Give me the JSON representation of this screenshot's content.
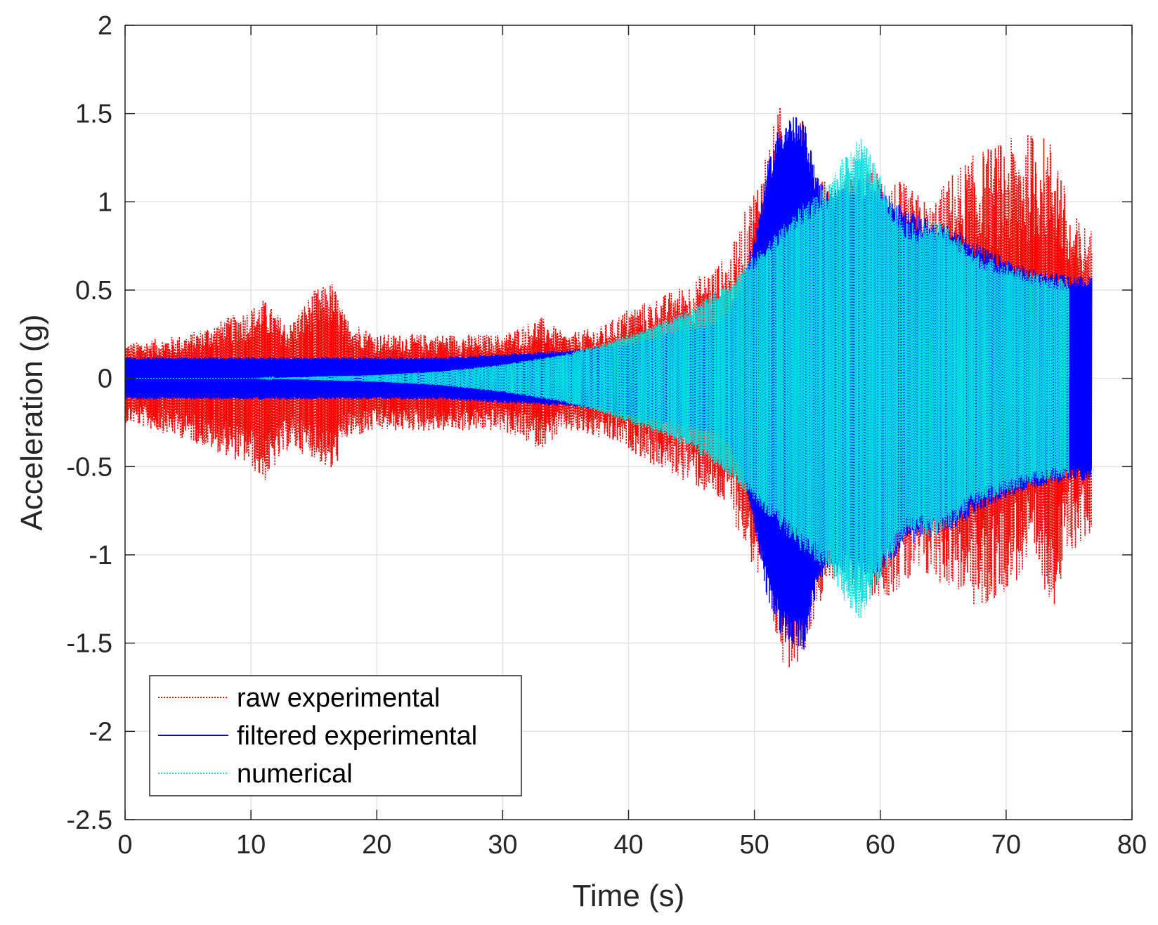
{
  "chart_data": {
    "type": "line",
    "title": "",
    "xlabel": "Time (s)",
    "ylabel": "Acceleration (g)",
    "xlim": [
      0,
      80
    ],
    "ylim": [
      -2.5,
      2
    ],
    "xticks": [
      0,
      10,
      20,
      30,
      40,
      50,
      60,
      70,
      80
    ],
    "yticks": [
      2,
      1.5,
      1,
      0.5,
      0,
      -0.5,
      -1,
      -1.5,
      -2,
      -2.5
    ],
    "grid": true,
    "legend_position": "bottom-left",
    "series": [
      {
        "name": "raw experimental",
        "color": "#ff0000",
        "style": "dotted",
        "description": "envelope of oscillatory signal (upper/lower bounds in g)",
        "t": [
          0,
          5,
          10,
          11,
          13,
          15,
          16.5,
          17.5,
          20,
          25,
          30,
          33,
          35,
          38,
          40,
          42,
          45,
          48,
          50,
          52,
          53,
          54,
          55,
          56,
          58,
          60,
          62,
          64,
          66,
          68,
          70,
          72,
          74,
          75,
          76.8
        ],
        "upper": [
          0.2,
          0.25,
          0.4,
          0.45,
          0.3,
          0.5,
          0.55,
          0.35,
          0.25,
          0.25,
          0.25,
          0.35,
          0.25,
          0.3,
          0.4,
          0.45,
          0.55,
          0.7,
          1.1,
          1.55,
          1.55,
          1.45,
          1.2,
          1.1,
          1.15,
          1.2,
          1.1,
          1.0,
          1.2,
          1.3,
          1.35,
          1.4,
          1.35,
          0.95,
          0.85
        ],
        "lower": [
          -0.25,
          -0.35,
          -0.5,
          -0.6,
          -0.4,
          -0.45,
          -0.55,
          -0.35,
          -0.3,
          -0.3,
          -0.3,
          -0.4,
          -0.3,
          -0.35,
          -0.4,
          -0.5,
          -0.6,
          -0.75,
          -1.1,
          -1.6,
          -1.65,
          -1.55,
          -1.3,
          -1.15,
          -1.2,
          -1.25,
          -1.2,
          -1.15,
          -1.2,
          -1.35,
          -1.2,
          -1.1,
          -1.3,
          -1.0,
          -0.9
        ]
      },
      {
        "name": "filtered experimental",
        "color": "#0000ff",
        "style": "solid",
        "description": "envelope of oscillatory signal (upper/lower bounds in g)",
        "t": [
          0,
          5,
          10,
          15,
          20,
          25,
          30,
          35,
          38,
          40,
          42,
          44,
          46,
          47,
          48,
          49,
          50,
          51,
          52,
          53,
          54,
          55,
          56,
          58,
          60,
          62,
          64,
          66,
          68,
          70,
          72,
          74,
          75,
          76.8
        ],
        "upper": [
          0.12,
          0.12,
          0.12,
          0.12,
          0.12,
          0.12,
          0.14,
          0.16,
          0.18,
          0.2,
          0.24,
          0.28,
          0.31,
          0.32,
          0.4,
          0.55,
          0.8,
          1.2,
          1.45,
          1.5,
          1.45,
          1.15,
          1.05,
          1.15,
          1.1,
          0.95,
          0.9,
          0.85,
          0.75,
          0.68,
          0.62,
          0.6,
          0.58,
          0.58
        ],
        "lower": [
          -0.12,
          -0.12,
          -0.12,
          -0.12,
          -0.12,
          -0.12,
          -0.14,
          -0.16,
          -0.18,
          -0.22,
          -0.25,
          -0.28,
          -0.31,
          -0.32,
          -0.4,
          -0.55,
          -0.85,
          -1.25,
          -1.45,
          -1.55,
          -1.55,
          -1.2,
          -1.05,
          -1.15,
          -1.1,
          -0.95,
          -0.9,
          -0.85,
          -0.75,
          -0.68,
          -0.62,
          -0.6,
          -0.58,
          -0.58
        ]
      },
      {
        "name": "numerical",
        "color": "#00e0e0",
        "style": "dotted",
        "description": "envelope of oscillatory signal (upper/lower bounds in g)",
        "t": [
          0,
          10,
          20,
          25,
          30,
          35,
          38,
          40,
          42,
          45,
          48,
          50,
          52,
          54,
          55,
          56,
          57,
          58,
          58.5,
          59,
          60,
          61,
          62,
          63,
          64,
          65,
          66,
          67,
          68,
          70,
          72,
          74,
          75,
          75.01
        ],
        "upper": [
          0.0,
          0.0,
          0.02,
          0.04,
          0.08,
          0.14,
          0.2,
          0.25,
          0.3,
          0.4,
          0.55,
          0.7,
          0.85,
          1.0,
          1.05,
          1.1,
          1.25,
          1.35,
          1.37,
          1.3,
          1.15,
          1.0,
          0.9,
          0.87,
          0.9,
          0.88,
          0.82,
          0.75,
          0.7,
          0.65,
          0.6,
          0.57,
          0.56,
          0.0
        ],
        "lower": [
          0.0,
          0.0,
          -0.02,
          -0.04,
          -0.08,
          -0.14,
          -0.2,
          -0.25,
          -0.3,
          -0.4,
          -0.55,
          -0.7,
          -0.85,
          -1.0,
          -1.05,
          -1.1,
          -1.25,
          -1.35,
          -1.37,
          -1.3,
          -1.15,
          -1.0,
          -0.9,
          -0.87,
          -0.9,
          -0.88,
          -0.82,
          -0.75,
          -0.7,
          -0.65,
          -0.6,
          -0.57,
          -0.56,
          0.0
        ]
      }
    ]
  }
}
